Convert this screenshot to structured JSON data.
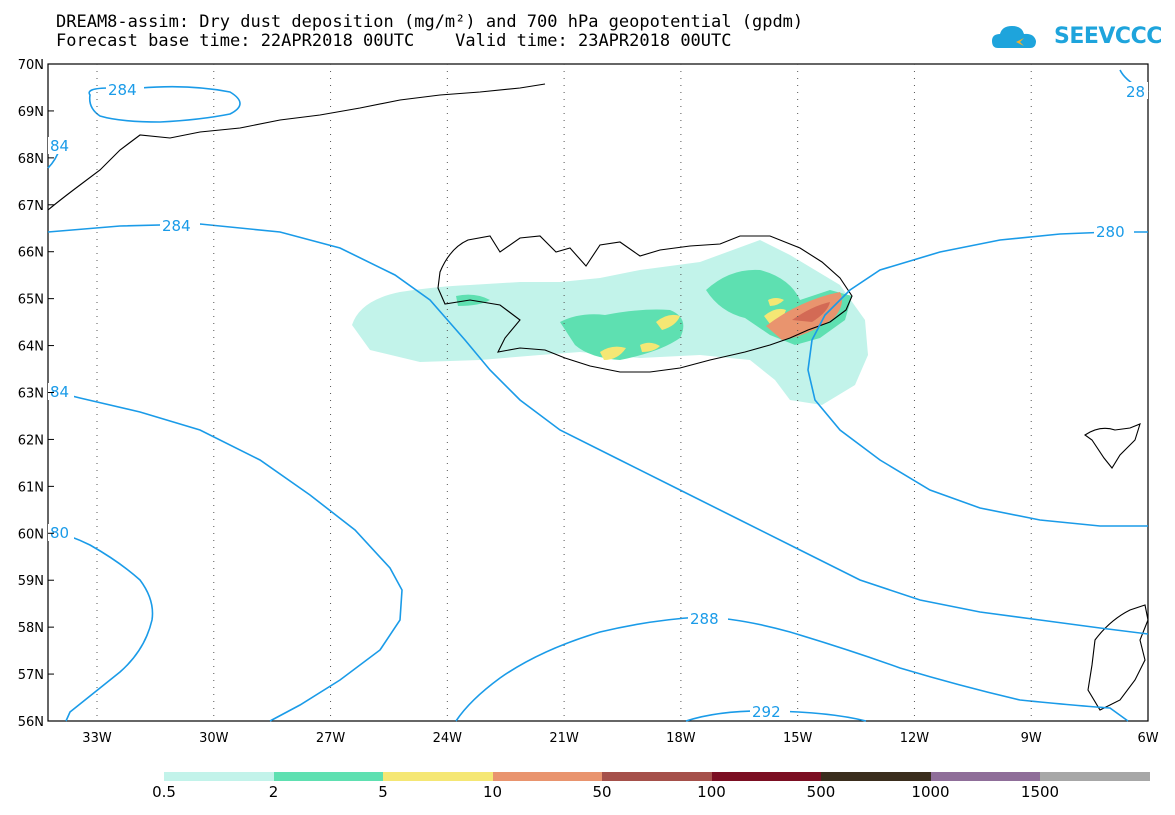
{
  "title": {
    "line1": "DREAM8-assim: Dry dust deposition (mg/m²) and 700 hPa geopotential (gpdm)",
    "line2": "Forecast base time: 22APR2018 00UTC    Valid time: 23APR2018 00UTC"
  },
  "logo": {
    "text": "SEEVCCC",
    "icon": "cloud-icon",
    "color": "#1ea4dc"
  },
  "axes": {
    "lat_labels": [
      "70N",
      "69N",
      "68N",
      "67N",
      "66N",
      "65N",
      "64N",
      "63N",
      "62N",
      "61N",
      "60N",
      "59N",
      "58N",
      "57N",
      "56N"
    ],
    "lon_labels": [
      "33W",
      "30W",
      "27W",
      "24W",
      "21W",
      "18W",
      "15W",
      "12W",
      "9W",
      "6W"
    ]
  },
  "contour_labels": {
    "l284_top": "284",
    "l84_left": "84",
    "l28_right": "28",
    "l284_mid": "284",
    "l280": "280",
    "l84_mid": "84",
    "l80": "80",
    "l288": "288",
    "l292": "292"
  },
  "legend": {
    "colors": [
      "#c2f3ea",
      "#5ee0b1",
      "#f5e774",
      "#e9946e",
      "#a5504a",
      "#7b0e22",
      "#3a2d1d",
      "#8f6e99",
      "#a7a7a7"
    ],
    "labels": [
      "0.5",
      "2",
      "5",
      "10",
      "50",
      "100",
      "500",
      "1000",
      "1500"
    ]
  }
}
